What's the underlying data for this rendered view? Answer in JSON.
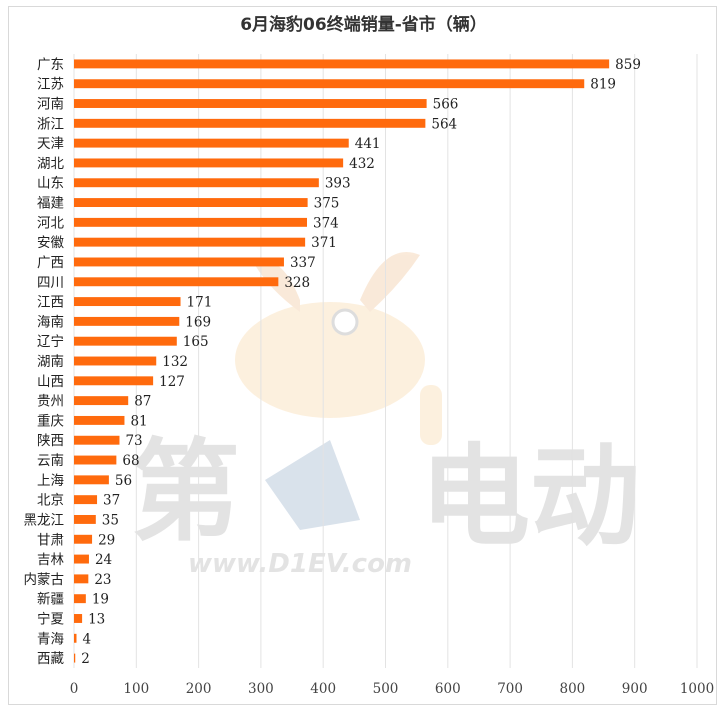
{
  "chart_data": {
    "type": "bar",
    "orientation": "horizontal",
    "title": "6月海豹06终端销量-省市（辆）",
    "categories": [
      "广东",
      "江苏",
      "河南",
      "浙江",
      "天津",
      "湖北",
      "山东",
      "福建",
      "河北",
      "安徽",
      "广西",
      "四川",
      "江西",
      "海南",
      "辽宁",
      "湖南",
      "山西",
      "贵州",
      "重庆",
      "陕西",
      "云南",
      "上海",
      "北京",
      "黑龙江",
      "甘肃",
      "吉林",
      "内蒙古",
      "新疆",
      "宁夏",
      "青海",
      "西藏"
    ],
    "values": [
      859,
      819,
      566,
      564,
      441,
      432,
      393,
      375,
      374,
      371,
      337,
      328,
      171,
      169,
      165,
      132,
      127,
      87,
      81,
      73,
      68,
      56,
      37,
      35,
      29,
      24,
      23,
      19,
      13,
      4,
      2
    ],
    "xlim": [
      0,
      1000
    ],
    "xticks": [
      0,
      100,
      200,
      300,
      400,
      500,
      600,
      700,
      800,
      900,
      1000
    ],
    "grid": "vertical",
    "bar_color": "#FF6A0D",
    "grid_color": "#e3e3e3"
  },
  "watermark": {
    "text_left": "第",
    "text_right": "电动",
    "url": "www.D1EV.com"
  }
}
